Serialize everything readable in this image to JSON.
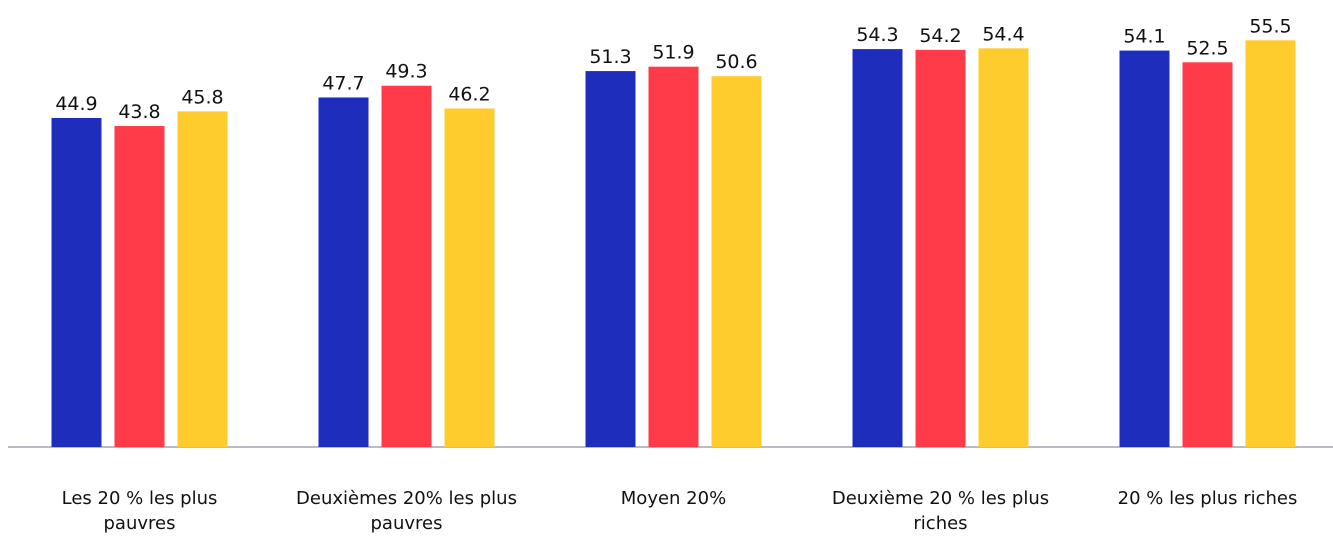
{
  "chart_data": {
    "type": "bar",
    "categories": [
      "Les 20 % les plus pauvres",
      "Deuxièmes 20% les plus pauvres",
      "Moyen 20%",
      "Deuxième 20 % les plus riches",
      "20 % les plus riches"
    ],
    "series": [
      {
        "color": "#1f2dbd",
        "values": [
          44.9,
          47.7,
          51.3,
          54.3,
          54.1
        ]
      },
      {
        "color": "#ff3b4a",
        "values": [
          43.8,
          49.3,
          51.9,
          54.2,
          52.5
        ]
      },
      {
        "color": "#ffcc2e",
        "values": [
          45.8,
          46.2,
          50.6,
          54.4,
          55.5
        ]
      }
    ],
    "ylim": [
      0,
      61
    ]
  }
}
